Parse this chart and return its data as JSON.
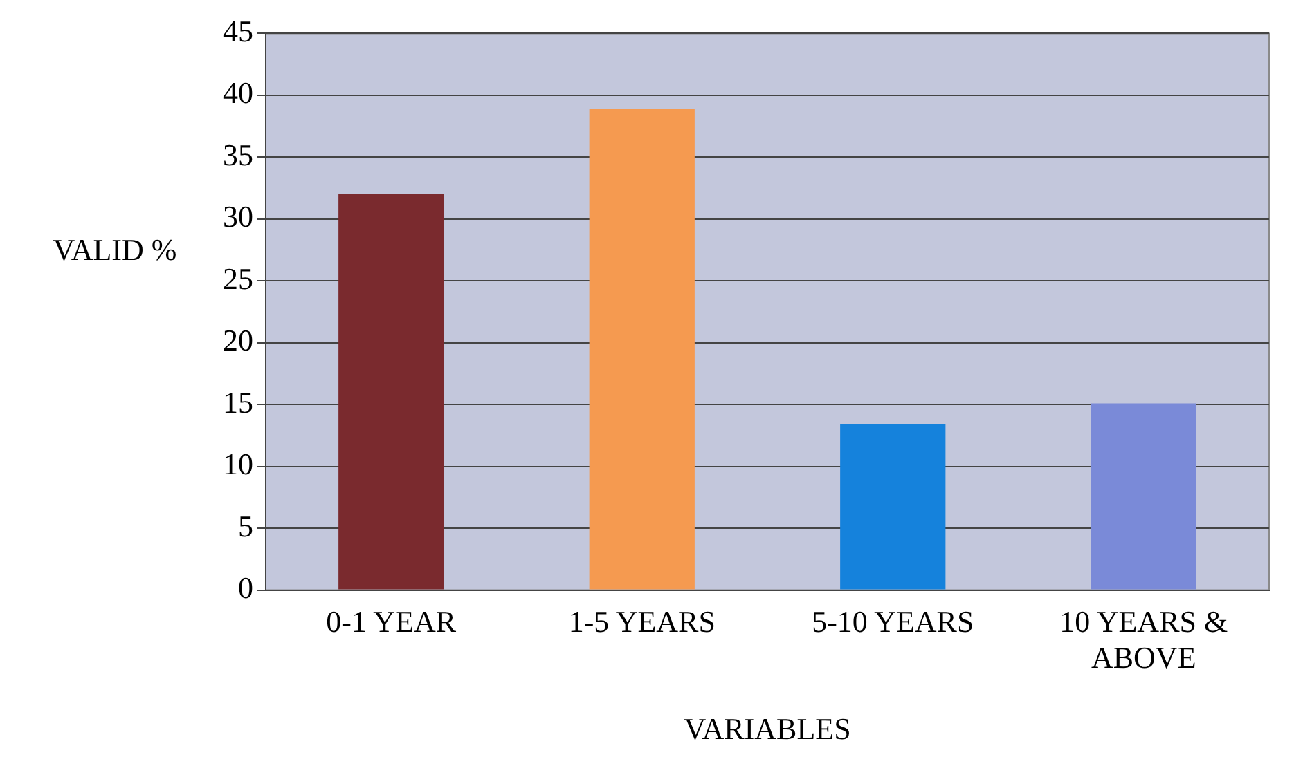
{
  "chart_data": {
    "type": "bar",
    "xlabel": "VARIABLES",
    "ylabel": "VALID %",
    "categories": [
      "0-1 YEAR",
      "1-5 YEARS",
      "5-10 YEARS",
      "10 YEARS & ABOVE"
    ],
    "values": [
      32,
      38.9,
      13.4,
      15.1
    ],
    "colors": [
      "#7a2a2e",
      "#f59a50",
      "#1582dc",
      "#7a8ad8"
    ],
    "ylim": [
      0,
      45
    ],
    "yticks": [
      0,
      5,
      10,
      15,
      20,
      25,
      30,
      35,
      40,
      45
    ],
    "grid": "y"
  }
}
